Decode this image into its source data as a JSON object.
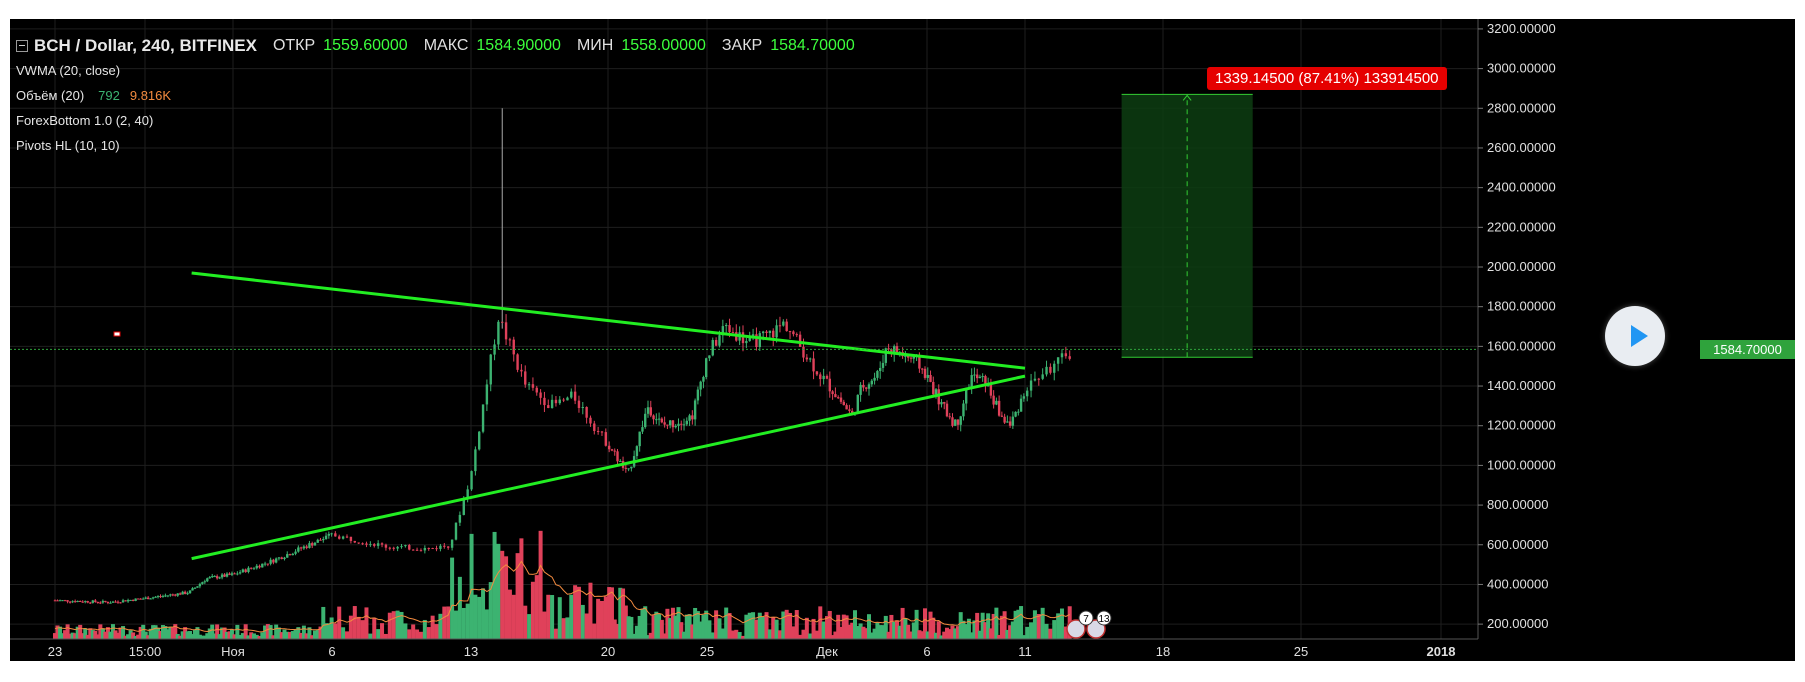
{
  "header": {
    "symbol": "BCH / Dollar, 240, BITFINEX",
    "open_label": "ОТКР",
    "open": "1559.60000",
    "high_label": "МАКС",
    "high": "1584.90000",
    "low_label": "МИН",
    "low": "1558.00000",
    "close_label": "ЗАКР",
    "close": "1584.70000"
  },
  "indicators": {
    "vwma": "VWMA (20, close)",
    "volume": "Объём (20)",
    "volume_value": "792",
    "volume_ma": "9.816K",
    "forex_bottom": "ForexBottom 1.0 (2, 40)",
    "pivots": "Pivots HL (10, 10)"
  },
  "target_label": "1339.14500 (87.41%) 133914500",
  "current_price": "1584.70000",
  "event_badges": [
    "7",
    "13"
  ],
  "colors": {
    "background": "#000000",
    "up_candle": "#3cb371",
    "down_candle": "#e0415a",
    "trendline": "#22ee22",
    "target_zone": "#0d3d12",
    "label_red": "#e50000",
    "price_badge": "#2fa33c",
    "vwma_line": "#f38b3f",
    "play_icon": "#2196f3"
  },
  "chart_data": {
    "type": "candlestick",
    "title": "BCH / Dollar, 240, BITFINEX",
    "y_ticks": [
      "3200.00000",
      "3000.00000",
      "2800.00000",
      "2600.00000",
      "2400.00000",
      "2200.00000",
      "2000.00000",
      "1800.00000",
      "1600.00000",
      "1400.00000",
      "1200.00000",
      "1000.00000",
      "800.00000",
      "600.00000",
      "400.00000",
      "200.00000"
    ],
    "x_ticks": [
      "23",
      "15:00",
      "Ноя",
      "6",
      "13",
      "20",
      "25",
      "Дек",
      "6",
      "11",
      "18",
      "25",
      "2018"
    ],
    "ylim": [
      125,
      3250
    ],
    "price_path_x_ticks": [
      0,
      0.6,
      1,
      1.5,
      1.7,
      2.0,
      2.4,
      3.0,
      3.2,
      3.4,
      3.7,
      3.85,
      4.0,
      4.2,
      4.4,
      4.6,
      4.75,
      4.95,
      5.2,
      5.4,
      5.55,
      5.7,
      5.85,
      6.0,
      6.15,
      6.35,
      6.5,
      6.65,
      6.8,
      6.95,
      7.1,
      7.25,
      7.35,
      7.5,
      7.6,
      7.75,
      7.9,
      8.0,
      8.15,
      8.3,
      8.45,
      8.6,
      8.75,
      8.85,
      9.0,
      9.1,
      9.25,
      9.35
    ],
    "price_path": [
      320,
      310,
      330,
      360,
      430,
      450,
      520,
      650,
      620,
      590,
      580,
      600,
      950,
      1750,
      1400,
      1300,
      1350,
      1150,
      950,
      1300,
      1200,
      1220,
      1250,
      1550,
      1700,
      1620,
      1650,
      1720,
      1580,
      1450,
      1350,
      1250,
      1400,
      1450,
      1600,
      1560,
      1520,
      1450,
      1300,
      1200,
      1450,
      1420,
      1250,
      1200,
      1380,
      1450,
      1520,
      1585
    ],
    "spike_high": 2800,
    "trendlines": [
      {
        "from": [
          1.53,
          1970
        ],
        "to": [
          9.0,
          1490
        ]
      },
      {
        "from": [
          1.53,
          530
        ],
        "to": [
          9.0,
          1450
        ]
      }
    ],
    "target_zone": {
      "x_from": 9.7,
      "x_to": 10.65,
      "y_bottom": 1545,
      "y_top": 2870,
      "target": 2870,
      "price_level": 1584.7
    }
  }
}
